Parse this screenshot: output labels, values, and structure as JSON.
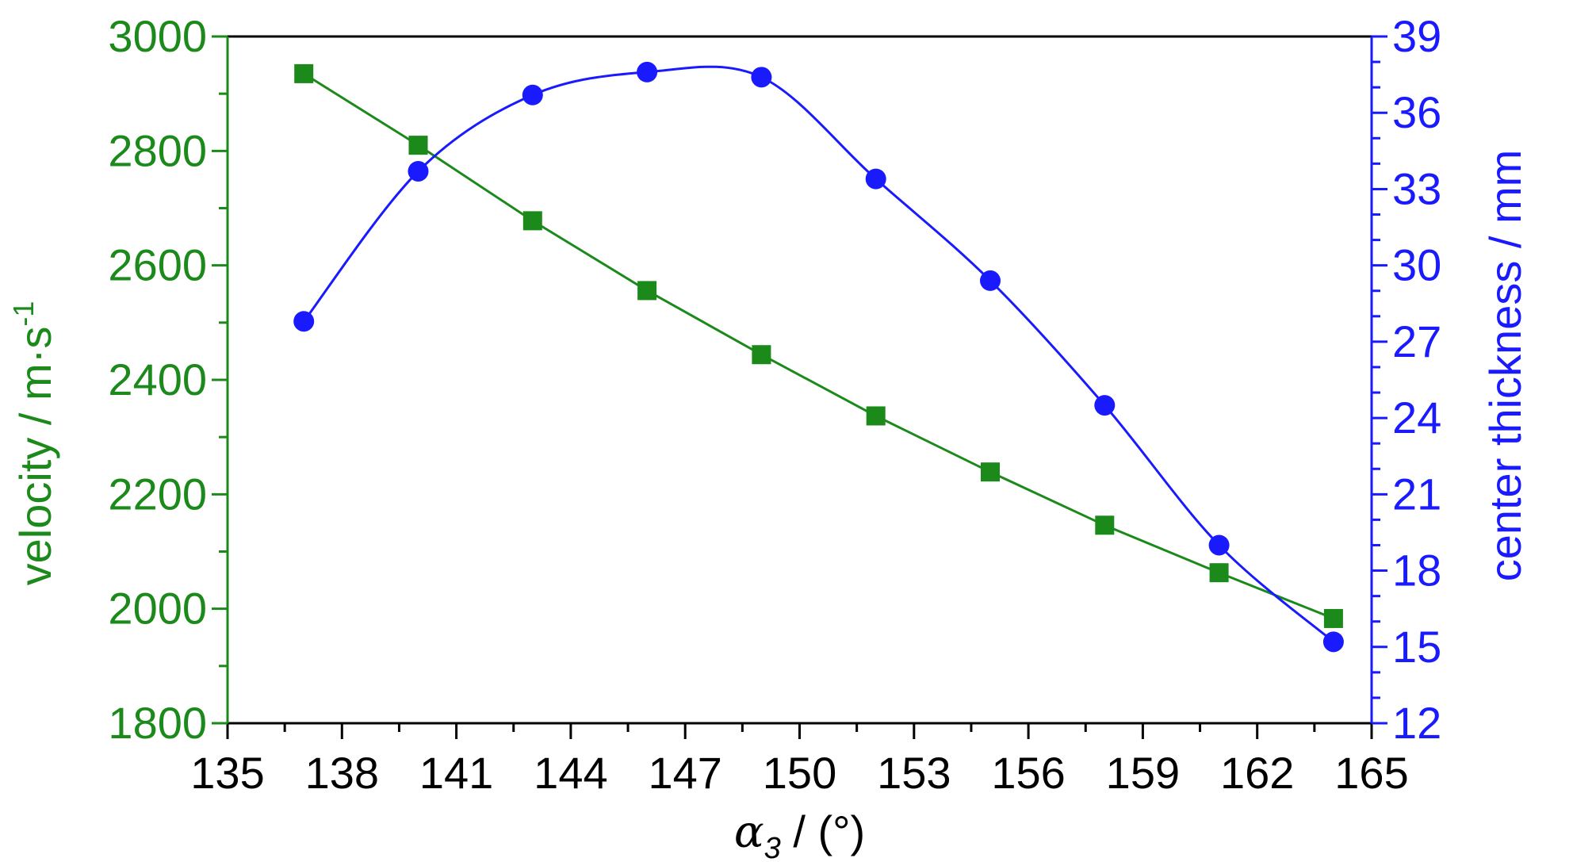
{
  "chart_data": {
    "type": "line",
    "x": [
      137,
      140,
      143,
      146,
      149,
      152,
      155,
      158,
      161,
      164
    ],
    "xlim": [
      135,
      165
    ],
    "xticks": [
      "135",
      "138",
      "141",
      "144",
      "147",
      "150",
      "153",
      "156",
      "159",
      "162",
      "165"
    ],
    "xlabel_symbol": "α",
    "xlabel_subscript": "3",
    "xlabel_unit": "/ (°)",
    "y_left": {
      "label_main": "velocity / m·s",
      "label_sup": "-1",
      "lim": [
        1800,
        3000
      ],
      "ticks": [
        "1800",
        "2000",
        "2200",
        "2400",
        "2600",
        "2800",
        "3000"
      ],
      "color": "#1b8a1b"
    },
    "y_right": {
      "label": "center thickness / mm",
      "lim": [
        12,
        39
      ],
      "ticks": [
        "12",
        "15",
        "18",
        "21",
        "24",
        "27",
        "30",
        "33",
        "36",
        "39"
      ],
      "color": "#1a1aff"
    },
    "series": [
      {
        "axis": "left",
        "marker": "square",
        "color": "#1b8a1b",
        "values": [
          2935,
          2810,
          2678,
          2556,
          2444,
          2337,
          2239,
          2146,
          2063,
          1983
        ]
      },
      {
        "axis": "right",
        "marker": "circle",
        "color": "#1a1aff",
        "values": [
          27.8,
          33.7,
          36.7,
          37.6,
          37.4,
          33.4,
          29.4,
          24.5,
          19.0,
          15.2
        ]
      }
    ]
  }
}
